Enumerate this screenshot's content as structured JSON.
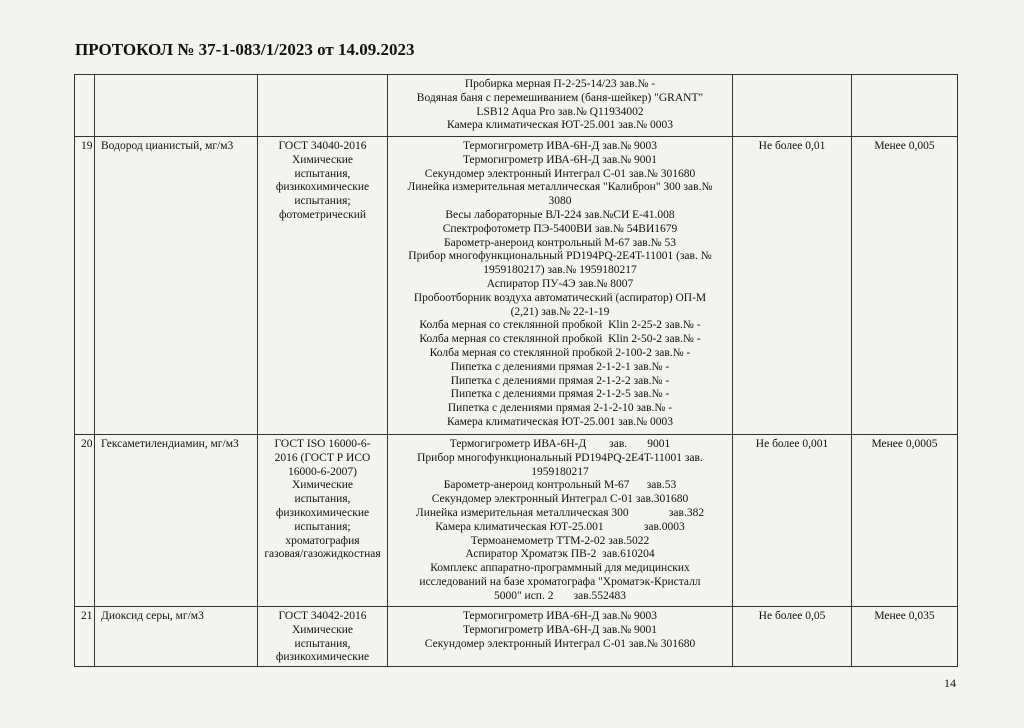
{
  "header": {
    "title": "ПРОТОКОЛ № 37-1-083/1/2023 от 14.09.2023"
  },
  "table": {
    "rows": [
      {
        "equipment": [
          "Пробирка мерная П-2-25-14/23 зав.№ -",
          "Водяная баня с перемешиванием (баня-шейкер) \"GRANT\"",
          "LSB12 Aqua Pro зав.№ Q11934002",
          "Камера климатическая ЮТ-25.001 зав.№ 0003"
        ]
      },
      {
        "number": "19",
        "indicator": "Водород цианистый, мг/м3",
        "method": [
          "ГОСТ 34040-2016",
          "Химические",
          "испытания,",
          "физикохимические",
          "испытания;",
          "фотометрический"
        ],
        "equipment": [
          "Термогигрометр ИВА-6Н-Д зав.№ 9003",
          "Термогигрометр ИВА-6Н-Д зав.№ 9001",
          "Секундомер электронный Интеграл С-01 зав.№ 301680",
          "Линейка измерительная металлическая \"Калиброн\" 300 зав.№",
          "3080",
          "Весы лабораторные ВЛ-224 зав.№СИ Е-41.008",
          "Спектрофотометр ПЭ-5400ВИ зав.№ 54ВИ1679",
          "Барометр-анероид контрольный М-67 зав.№ 53",
          "Прибор многофункциональный PD194PQ-2E4T-11001 (зав. №",
          "1959180217) зав.№ 1959180217",
          "Аспиратор ПУ-4Э зав.№ 8007",
          "Пробоотборник воздуха автоматический (аспиратор) ОП-М",
          "(2,21) зав.№ 22-1-19",
          "Колба мерная со стеклянной пробкой  Klin 2-25-2 зав.№ -",
          "Колба мерная со стеклянной пробкой  Klin 2-50-2 зав.№ -",
          "Колба мерная со стеклянной пробкой 2-100-2 зав.№ -",
          "Пипетка с делениями прямая 2-1-2-1 зав.№ -",
          "Пипетка с делениями прямая 2-1-2-2 зав.№ -",
          "Пипетка с делениями прямая 2-1-2-5 зав.№ -",
          "Пипетка с делениями прямая 2-1-2-10 зав.№ -",
          "Камера климатическая ЮТ-25.001 зав.№ 0003"
        ],
        "norm": "Не более 0,01",
        "result": "Менее 0,005"
      },
      {
        "number": "20",
        "indicator": "Гексаметилендиамин, мг/м3",
        "method": [
          "ГОСТ ISO 16000-6-",
          "2016 (ГОСТ Р ИСО",
          "16000-6-2007)",
          "Химические",
          "испытания,",
          "физикохимические",
          "испытания;",
          "хроматография",
          "газовая/газожидкостная"
        ],
        "equipment": [
          "Термогигрометр ИВА-6Н-Д        зав.       9001",
          "Прибор многофункциональный PD194PQ-2E4T-11001 зав.",
          "1959180217",
          "Барометр-анероид контрольный М-67      зав.53",
          "Секундомер электронный Интеграл С-01 зав.301680",
          "Линейка измерительная металлическая 300              зав.382",
          "Камера климатическая ЮТ-25.001              зав.0003",
          "Термоанемометр ТТМ-2-02 зав.5022",
          "Аспиратор Хроматэк ПВ-2  зав.610204",
          "Комплекс аппаратно-программный для медицинских",
          "исследований на базе хроматографа \"Хроматэк-Кристалл",
          "5000\" исп. 2       зав.552483"
        ],
        "norm": "Не более 0,001",
        "result": "Менее 0,0005"
      },
      {
        "number": "21",
        "indicator": "Диоксид серы, мг/м3",
        "method": [
          "ГОСТ 34042-2016",
          "Химические",
          "испытания,",
          "физикохимические"
        ],
        "equipment": [
          "Термогигрометр ИВА-6Н-Д зав.№ 9003",
          "Термогигрометр ИВА-6Н-Д зав.№ 9001",
          "Секундомер электронный Интеграл С-01 зав.№ 301680"
        ],
        "norm": "Не более 0,05",
        "result": "Менее 0,035"
      }
    ]
  },
  "footer": {
    "page": "14"
  }
}
